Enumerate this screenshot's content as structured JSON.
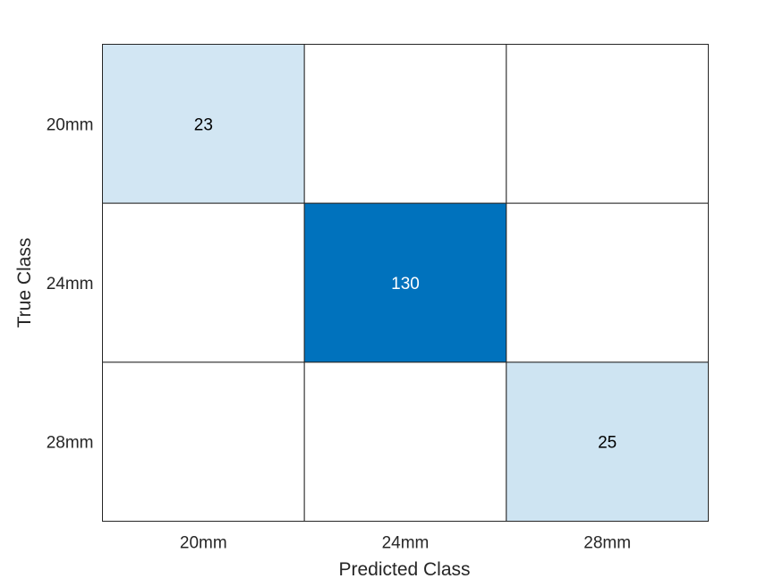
{
  "chart_data": {
    "type": "heatmap",
    "title": "",
    "xlabel": "Predicted Class",
    "ylabel": "True Class",
    "x_categories": [
      "20mm",
      "24mm",
      "28mm"
    ],
    "y_categories": [
      "20mm",
      "24mm",
      "28mm"
    ],
    "values": [
      [
        23,
        null,
        null
      ],
      [
        null,
        130,
        null
      ],
      [
        null,
        null,
        25
      ]
    ],
    "colormap": {
      "low": "#ffffff",
      "high": "#0072bd"
    },
    "grid": true,
    "colors": {
      "dark_text": "#000000",
      "light_text": "#ffffff",
      "cell_border": "#262626"
    }
  }
}
